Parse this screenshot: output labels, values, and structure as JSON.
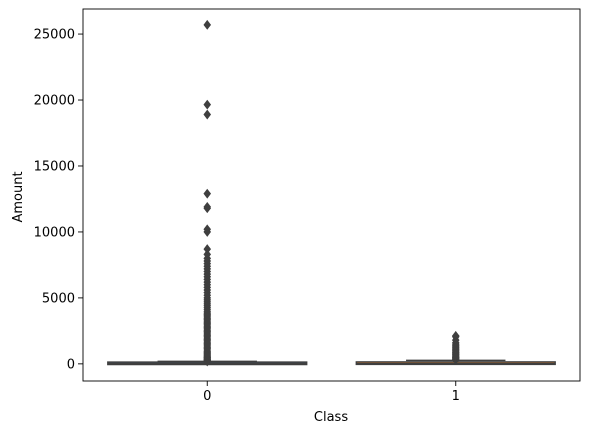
{
  "chart_data": {
    "type": "box",
    "title": "",
    "xlabel": "Class",
    "ylabel": "Amount",
    "ylim": [
      -1300,
      26900
    ],
    "y_ticks": [
      0,
      5000,
      10000,
      15000,
      20000,
      25000
    ],
    "y_tick_labels": [
      "0",
      "5000",
      "10000",
      "15000",
      "20000",
      "25000"
    ],
    "categories": [
      "0",
      "1"
    ],
    "boxes": [
      {
        "category": "0",
        "q1": 5.65,
        "median": 22.0,
        "q3": 77.05,
        "whisker_low": 0,
        "whisker_high": 184.5,
        "outliers": [
          185,
          200,
          230,
          260,
          300,
          350,
          400,
          450,
          500,
          560,
          620,
          700,
          780,
          860,
          950,
          1050,
          1150,
          1250,
          1350,
          1450,
          1550,
          1650,
          1750,
          1850,
          1950,
          2050,
          2150,
          2250,
          2350,
          2450,
          2550,
          2650,
          2750,
          2850,
          2950,
          3050,
          3150,
          3250,
          3350,
          3450,
          3550,
          3650,
          3750,
          3850,
          3950,
          4100,
          4250,
          4400,
          4550,
          4700,
          4850,
          5000,
          5200,
          5400,
          5600,
          5800,
          6000,
          6200,
          6400,
          6600,
          6800,
          7000,
          7200,
          7400,
          7600,
          7800,
          8000,
          8300,
          8700,
          10000,
          10200,
          11800,
          11900,
          12900,
          18900,
          19650,
          25700
        ]
      },
      {
        "category": "1",
        "q1": 1.0,
        "median": 9.25,
        "q3": 105.9,
        "whisker_low": 0,
        "whisker_high": 264.5,
        "outliers": [
          300,
          350,
          400,
          450,
          500,
          560,
          620,
          700,
          760,
          830,
          900,
          980,
          1060,
          1140,
          1220,
          1300,
          1400,
          1500,
          1600,
          1800,
          2050,
          2125
        ]
      }
    ],
    "colors": {
      "box_0": "#3274a1",
      "box_1": "#e1812c",
      "lines": "#3f3f3f"
    }
  }
}
